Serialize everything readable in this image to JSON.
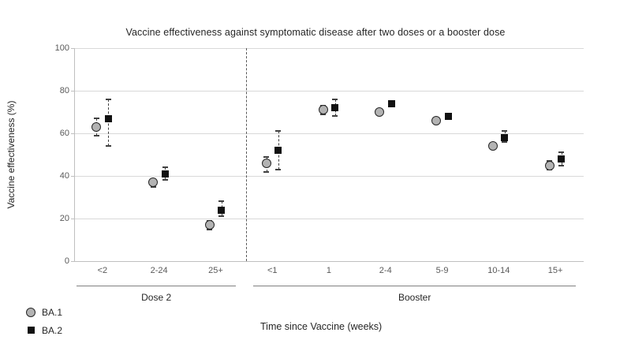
{
  "title": "Vaccine effectiveness against symptomatic disease after two doses or a booster dose",
  "y_axis": {
    "label": "Vaccine effectiveness (%)",
    "ticks": [
      0,
      20,
      40,
      60,
      80,
      100
    ],
    "min": 0,
    "max": 100
  },
  "x_axis": {
    "title": "Time since Vaccine (weeks)",
    "groups": [
      {
        "label": "Dose 2",
        "categories": [
          "<2",
          "2-24",
          "25+"
        ]
      },
      {
        "label": "Booster",
        "categories": [
          "<1",
          "1",
          "2-4",
          "5-9",
          "10-14",
          "15+"
        ]
      }
    ]
  },
  "legend": [
    {
      "label": "BA.1",
      "marker": "circle"
    },
    {
      "label": "BA.2",
      "marker": "square"
    }
  ],
  "colors": {
    "ba1_fill": "#b3b3b3",
    "ba1_border": "#262626",
    "ba2_fill": "#111111",
    "gridline": "#d9d9d9",
    "axis": "#bfbfbf",
    "error_bar": "#404040",
    "text": "#262626",
    "tick_text": "#595959"
  },
  "chart_data": {
    "type": "scatter",
    "title": "Vaccine effectiveness against symptomatic disease after two doses or a booster dose",
    "xlabel": "Time since Vaccine (weeks)",
    "ylabel": "Vaccine effectiveness (%)",
    "ylim": [
      0,
      100
    ],
    "grid": true,
    "legend_position": "bottom-left",
    "categories": [
      "<2",
      "2-24",
      "25+",
      "<1",
      "1",
      "2-4",
      "5-9",
      "10-14",
      "15+"
    ],
    "category_groups": [
      {
        "label": "Dose 2",
        "span": [
          0,
          2
        ]
      },
      {
        "label": "Booster",
        "span": [
          3,
          8
        ]
      }
    ],
    "divider_after_index": 2,
    "series": [
      {
        "name": "BA.1",
        "marker": "circle",
        "values": [
          63,
          37,
          17,
          46,
          71,
          70,
          66,
          54,
          45
        ],
        "ci_low": [
          59,
          35,
          15,
          42,
          69,
          69,
          65,
          53,
          43
        ],
        "ci_high": [
          67,
          38,
          19,
          49,
          73,
          71,
          67,
          55,
          47
        ]
      },
      {
        "name": "BA.2",
        "marker": "square",
        "values": [
          67,
          41,
          24,
          52,
          72,
          74,
          68,
          58,
          48
        ],
        "ci_low": [
          54,
          38,
          21,
          43,
          68,
          73,
          67,
          56,
          45
        ],
        "ci_high": [
          76,
          44,
          28,
          61,
          76,
          75,
          69,
          61,
          51
        ]
      }
    ]
  }
}
